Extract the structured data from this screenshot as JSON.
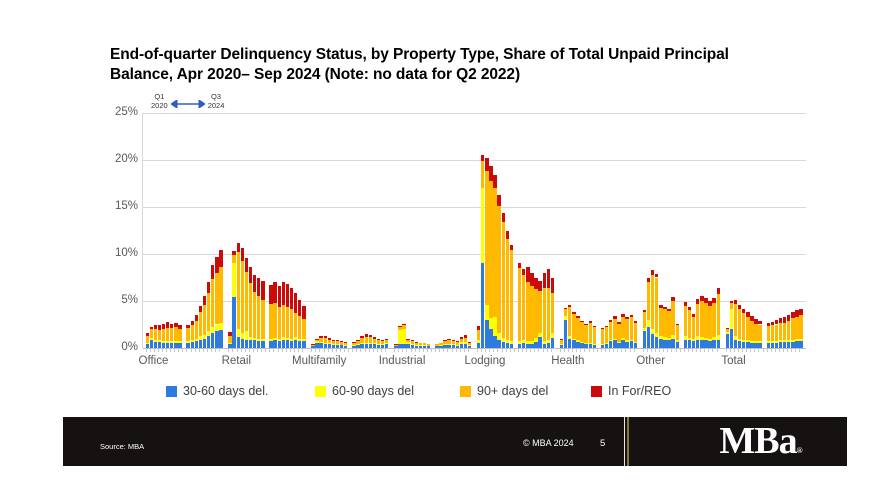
{
  "slide": {
    "title": "End-of-quarter Delinquency Status, by Property Type, Share of Total Unpaid Principal Balance, Apr 2020– Sep 2024 (Note: no data for Q2 2022)"
  },
  "annotation": {
    "start_quarter": "Q1",
    "start_year": "2020",
    "end_quarter": "Q3",
    "end_year": "2024",
    "arrow_color": "#2e5fbf"
  },
  "legend": {
    "items": [
      {
        "label": "30-60 days del.",
        "color": "#2e7be0"
      },
      {
        "label": "60-90 days del",
        "color": "#ffff00"
      },
      {
        "label": "90+ days del",
        "color": "#ffb900"
      },
      {
        "label": "In For/REO",
        "color": "#cc0a0a"
      }
    ]
  },
  "footer": {
    "source": "Source: MBA",
    "copyright": "© MBA 2024",
    "page_number": "5",
    "logo_text": "MBa",
    "logo_reg": "®",
    "bar_color": "#171212",
    "divider_gold": "#8a7445"
  },
  "chart_data": {
    "type": "bar",
    "stacked": true,
    "title": "End-of-quarter Delinquency Status, by Property Type, Share of Total Unpaid Principal Balance, Apr 2020– Sep 2024 (Note: no data for Q2 2022)",
    "categories": [
      "Office",
      "Retail",
      "Multifamily",
      "Industrial",
      "Lodging",
      "Health",
      "Other",
      "Total"
    ],
    "quarters": [
      "2020 Q1",
      "2020 Q2",
      "2020 Q3",
      "2020 Q4",
      "2021 Q1",
      "2021 Q2",
      "2021 Q3",
      "2021 Q4",
      "2022 Q1",
      "2022 Q3",
      "2022 Q4",
      "2023 Q1",
      "2023 Q2",
      "2023 Q3",
      "2023 Q4",
      "2024 Q1",
      "2024 Q2",
      "2024 Q3"
    ],
    "missing_quarter": "2022 Q2",
    "ylim": [
      0,
      25
    ],
    "ytick_labels": [
      "0%",
      "5%",
      "10%",
      "15%",
      "20%",
      "25%"
    ],
    "grid": true,
    "legend_position": "bottom",
    "units": "percent of unpaid principal balance",
    "series": [
      {
        "name": "30-60 days del.",
        "color": "#2e7be0",
        "values_by_category": [
          [
            0.4,
            0.8,
            0.6,
            0.6,
            0.5,
            0.5,
            0.5,
            0.5,
            0.5,
            0.5,
            0.6,
            0.7,
            0.9,
            1.0,
            1.3,
            1.6,
            1.8,
            1.9
          ],
          [
            0.4,
            5.4,
            1.2,
            1.0,
            0.9,
            0.8,
            0.8,
            0.7,
            0.7,
            0.7,
            0.8,
            0.7,
            0.8,
            0.8,
            0.7,
            0.8,
            0.7,
            0.7
          ],
          [
            0.2,
            0.5,
            0.5,
            0.4,
            0.4,
            0.3,
            0.3,
            0.3,
            0.2,
            0.2,
            0.3,
            0.4,
            0.4,
            0.4,
            0.4,
            0.3,
            0.3,
            0.4
          ],
          [
            0.2,
            0.4,
            0.4,
            0.4,
            0.3,
            0.2,
            0.2,
            0.2,
            0.2,
            0.2,
            0.2,
            0.3,
            0.3,
            0.3,
            0.2,
            0.4,
            0.4,
            0.2
          ],
          [
            0.5,
            9.0,
            3.0,
            2.0,
            1.3,
            0.8,
            0.6,
            0.5,
            0.4,
            0.4,
            0.5,
            0.4,
            0.4,
            0.6,
            1.2,
            0.4,
            0.5,
            1.1
          ],
          [
            0.3,
            3.0,
            1.0,
            0.8,
            0.6,
            0.5,
            0.4,
            0.4,
            0.3,
            0.3,
            0.4,
            0.7,
            0.8,
            0.5,
            0.9,
            0.6,
            0.7,
            0.5
          ],
          [
            1.8,
            2.2,
            1.5,
            1.2,
            1.0,
            0.9,
            0.8,
            1.0,
            0.6,
            0.9,
            0.8,
            0.7,
            0.9,
            0.8,
            0.8,
            0.7,
            0.8,
            0.9
          ],
          [
            1.5,
            2.0,
            0.8,
            0.7,
            0.6,
            0.6,
            0.5,
            0.5,
            0.5,
            0.5,
            0.5,
            0.5,
            0.6,
            0.6,
            0.6,
            0.6,
            0.7,
            0.7
          ]
        ]
      },
      {
        "name": "60-90 days del",
        "color": "#ffff00",
        "values_by_category": [
          [
            0.1,
            0.3,
            0.2,
            0.2,
            0.2,
            0.2,
            0.2,
            0.2,
            0.2,
            0.2,
            0.2,
            0.3,
            0.4,
            0.4,
            0.5,
            0.6,
            0.7,
            0.8
          ],
          [
            0.1,
            3.6,
            0.8,
            0.6,
            0.9,
            0.4,
            0.3,
            0.3,
            0.3,
            0.3,
            0.3,
            0.3,
            0.4,
            0.3,
            0.3,
            0.4,
            0.3,
            0.3
          ],
          [
            0.0,
            0.2,
            0.1,
            0.1,
            0.1,
            0.1,
            0.1,
            0.0,
            0.1,
            0.1,
            0.1,
            0.1,
            0.1,
            0.1,
            0.1,
            0.1,
            0.1,
            0.1
          ],
          [
            0.0,
            1.5,
            1.6,
            0.2,
            0.1,
            0.1,
            0.1,
            0.1,
            0.0,
            0.0,
            0.1,
            0.1,
            0.1,
            0.1,
            0.1,
            0.2,
            0.2,
            0.1
          ],
          [
            0.3,
            8.0,
            1.6,
            1.2,
            2.0,
            0.8,
            0.5,
            0.4,
            0.3,
            0.3,
            0.4,
            0.3,
            0.3,
            0.5,
            0.4,
            0.3,
            0.4,
            0.5
          ],
          [
            0.1,
            0.4,
            0.3,
            0.2,
            0.2,
            0.1,
            0.1,
            0.1,
            0.1,
            0.1,
            0.1,
            0.2,
            0.2,
            0.1,
            0.2,
            0.2,
            0.2,
            0.1
          ],
          [
            0.3,
            0.8,
            0.5,
            0.4,
            0.3,
            0.3,
            0.3,
            0.4,
            0.2,
            0.4,
            0.3,
            0.3,
            0.4,
            0.4,
            0.3,
            0.3,
            0.4,
            0.5
          ],
          [
            0.2,
            2.2,
            0.5,
            0.3,
            0.3,
            0.2,
            0.2,
            0.2,
            0.2,
            0.2,
            0.2,
            0.2,
            0.2,
            0.2,
            0.2,
            0.3,
            0.3,
            0.3
          ]
        ]
      },
      {
        "name": "90+ days del",
        "color": "#ffb900",
        "values_by_category": [
          [
            0.8,
            0.9,
            1.2,
            1.1,
            1.3,
            1.4,
            1.4,
            1.5,
            1.3,
            1.4,
            1.6,
            1.9,
            2.5,
            3.2,
            4.0,
            5.1,
            5.5,
            5.9
          ],
          [
            0.8,
            0.9,
            8.2,
            7.7,
            6.3,
            5.7,
            4.9,
            4.5,
            4.1,
            3.7,
            3.7,
            3.4,
            3.4,
            3.3,
            3.1,
            2.5,
            2.4,
            2.1
          ],
          [
            0.1,
            0.2,
            0.5,
            0.6,
            0.4,
            0.4,
            0.3,
            0.3,
            0.2,
            0.2,
            0.3,
            0.6,
            0.7,
            0.7,
            0.5,
            0.5,
            0.4,
            0.4
          ],
          [
            0.1,
            0.3,
            0.4,
            0.3,
            0.3,
            0.2,
            0.2,
            0.2,
            0.2,
            0.2,
            0.2,
            0.4,
            0.4,
            0.3,
            0.3,
            0.4,
            0.5,
            0.2
          ],
          [
            1.1,
            2.9,
            14.2,
            14.6,
            13.7,
            13.5,
            12.3,
            10.7,
            9.7,
            7.8,
            6.9,
            6.3,
            5.9,
            5.2,
            4.5,
            5.7,
            5.5,
            4.3
          ],
          [
            0.5,
            0.8,
            3.1,
            2.6,
            2.4,
            2.2,
            2.0,
            2.2,
            1.8,
            1.6,
            1.7,
            1.9,
            2.1,
            2.0,
            2.2,
            2.3,
            2.4,
            2.1
          ],
          [
            1.7,
            4.0,
            5.8,
            5.9,
            3.0,
            2.9,
            2.8,
            3.6,
            1.6,
            3.2,
            2.9,
            2.3,
            3.4,
            3.8,
            3.7,
            3.5,
            3.6,
            4.3
          ],
          [
            0.3,
            0.6,
            3.4,
            3.1,
            2.8,
            2.5,
            2.2,
            1.9,
            1.8,
            1.6,
            1.7,
            1.8,
            1.9,
            1.9,
            2.1,
            2.3,
            2.3,
            2.5
          ]
        ]
      },
      {
        "name": "In For/REO",
        "color": "#cc0a0a",
        "values_by_category": [
          [
            0.3,
            0.2,
            0.5,
            0.5,
            0.6,
            0.7,
            0.5,
            0.5,
            0.4,
            0.4,
            0.5,
            0.6,
            0.7,
            0.9,
            1.2,
            1.5,
            1.7,
            1.8
          ],
          [
            0.4,
            0.4,
            1.0,
            1.3,
            1.5,
            1.7,
            1.8,
            1.9,
            2.0,
            2.0,
            2.2,
            2.2,
            2.4,
            2.4,
            2.3,
            2.1,
            1.7,
            1.4
          ],
          [
            0.1,
            0.1,
            0.2,
            0.2,
            0.2,
            0.1,
            0.1,
            0.1,
            0.1,
            0.1,
            0.1,
            0.2,
            0.3,
            0.2,
            0.2,
            0.1,
            0.1,
            0.1
          ],
          [
            0.1,
            0.1,
            0.2,
            0.1,
            0.1,
            0.1,
            0.0,
            0.0,
            0.0,
            0.0,
            0.0,
            0.1,
            0.2,
            0.1,
            0.1,
            0.2,
            0.3,
            0.1
          ],
          [
            0.4,
            0.6,
            1.4,
            1.6,
            1.4,
            1.2,
            1.0,
            0.8,
            0.6,
            0.5,
            0.6,
            1.6,
            1.4,
            1.2,
            1.0,
            1.6,
            2.0,
            1.5
          ],
          [
            0.1,
            0.1,
            0.2,
            0.2,
            0.2,
            0.1,
            0.1,
            0.2,
            0.1,
            0.1,
            0.1,
            0.2,
            0.3,
            0.2,
            0.3,
            0.2,
            0.2,
            0.2
          ],
          [
            0.2,
            0.4,
            0.5,
            0.4,
            0.3,
            0.3,
            0.3,
            0.4,
            0.2,
            0.4,
            0.4,
            0.3,
            0.5,
            0.5,
            0.5,
            0.5,
            0.5,
            0.7
          ],
          [
            0.1,
            0.2,
            0.4,
            0.5,
            0.5,
            0.5,
            0.5,
            0.5,
            0.4,
            0.4,
            0.4,
            0.5,
            0.5,
            0.6,
            0.6,
            0.6,
            0.7,
            0.7
          ]
        ]
      }
    ]
  }
}
